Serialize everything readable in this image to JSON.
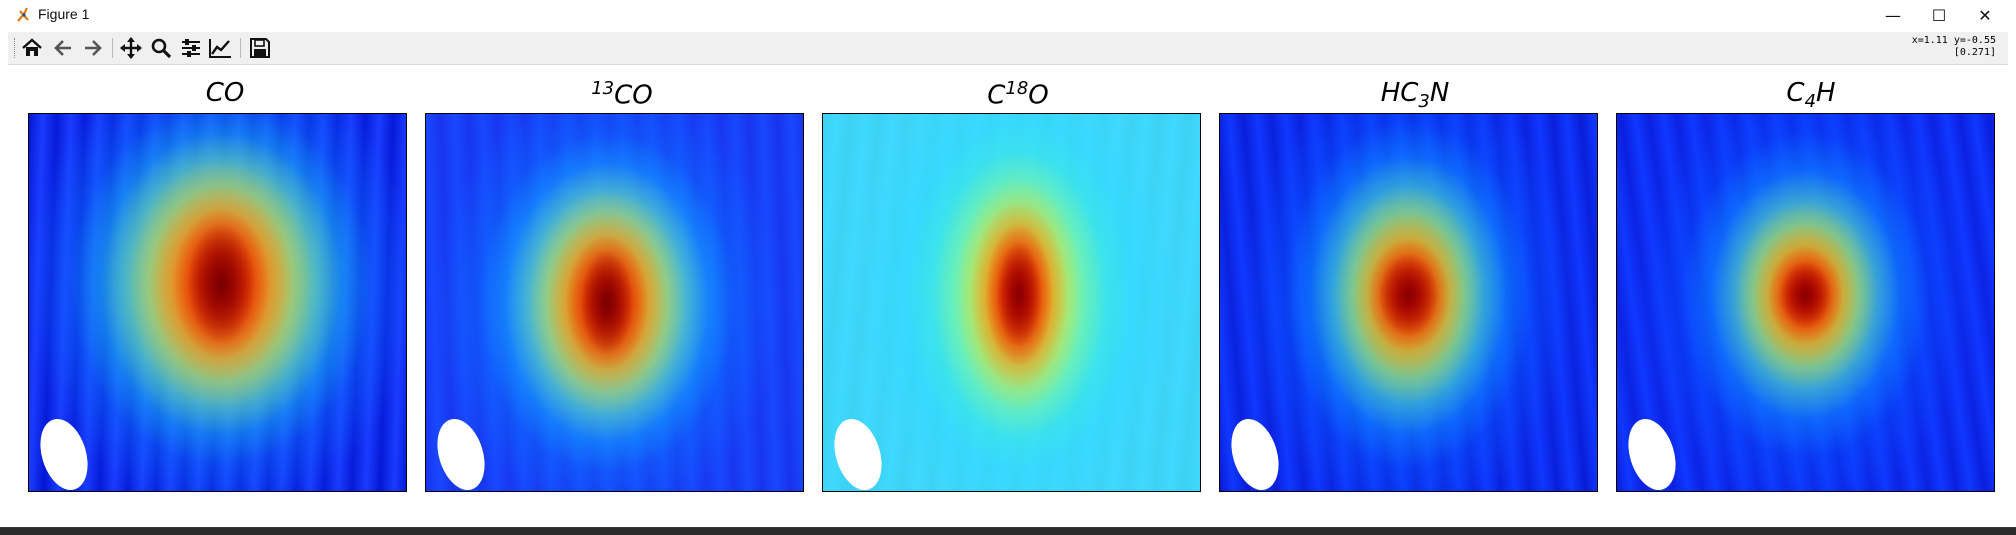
{
  "window": {
    "title": "Figure 1",
    "controls": {
      "minimize": "—",
      "maximize": "☐",
      "close": "✕"
    }
  },
  "toolbar": {
    "buttons": [
      {
        "name": "home",
        "icon": "home-icon"
      },
      {
        "name": "back",
        "icon": "arrow-left-icon"
      },
      {
        "name": "forward",
        "icon": "arrow-right-icon"
      },
      {
        "name": "pan",
        "icon": "move-icon"
      },
      {
        "name": "zoom",
        "icon": "zoom-icon"
      },
      {
        "name": "configure-subplots",
        "icon": "sliders-icon"
      },
      {
        "name": "edit-axis",
        "icon": "line-chart-icon"
      },
      {
        "name": "save",
        "icon": "save-icon"
      }
    ],
    "coord_line1": "x=1.11 y=-0.55",
    "coord_line2": "[0.271]"
  },
  "figure": {
    "panels": [
      {
        "title_main": "CO",
        "title_sup": "",
        "title_after": "",
        "title_sub": "",
        "title_tail": "",
        "colors": [
          "#7a0000",
          "#c80000",
          "#ff3a00",
          "#ff9c00",
          "#fff23a",
          "#3bffd0",
          "#00a8ff",
          "#1a3cff",
          "#0010cc"
        ]
      },
      {
        "title_main": "CO",
        "title_sup": "13",
        "title_after": "",
        "title_sub": "",
        "title_tail": "",
        "colors": [
          "#7a0000",
          "#c80000",
          "#ff4000",
          "#ffb000",
          "#e8ff40",
          "#30f0ff",
          "#0090ff",
          "#1848ff",
          "#1830e8"
        ]
      },
      {
        "title_main": "C",
        "title_sup": "18",
        "title_after": "O",
        "title_sub": "",
        "title_tail": "",
        "colors": [
          "#8a0000",
          "#d00000",
          "#ff4a00",
          "#ffb800",
          "#e0ff50",
          "#60ffb0",
          "#20e0ff",
          "#40d8ff",
          "#3ad0f0"
        ]
      },
      {
        "title_main": "HC",
        "title_sup": "",
        "title_after": "",
        "title_sub": "3",
        "title_tail": "N",
        "colors": [
          "#8a0000",
          "#d60000",
          "#ff5a00",
          "#ffc000",
          "#a0ff70",
          "#20d8ff",
          "#0070ff",
          "#1038ff",
          "#0818d0"
        ]
      },
      {
        "title_main": "C",
        "title_sup": "",
        "title_after": "",
        "title_sub": "4",
        "title_tail": "H",
        "colors": [
          "#8a0000",
          "#d60000",
          "#ff5000",
          "#ffc000",
          "#b0ff60",
          "#20d0ff",
          "#0060ff",
          "#1038ff",
          "#0a1ad8"
        ]
      }
    ]
  }
}
